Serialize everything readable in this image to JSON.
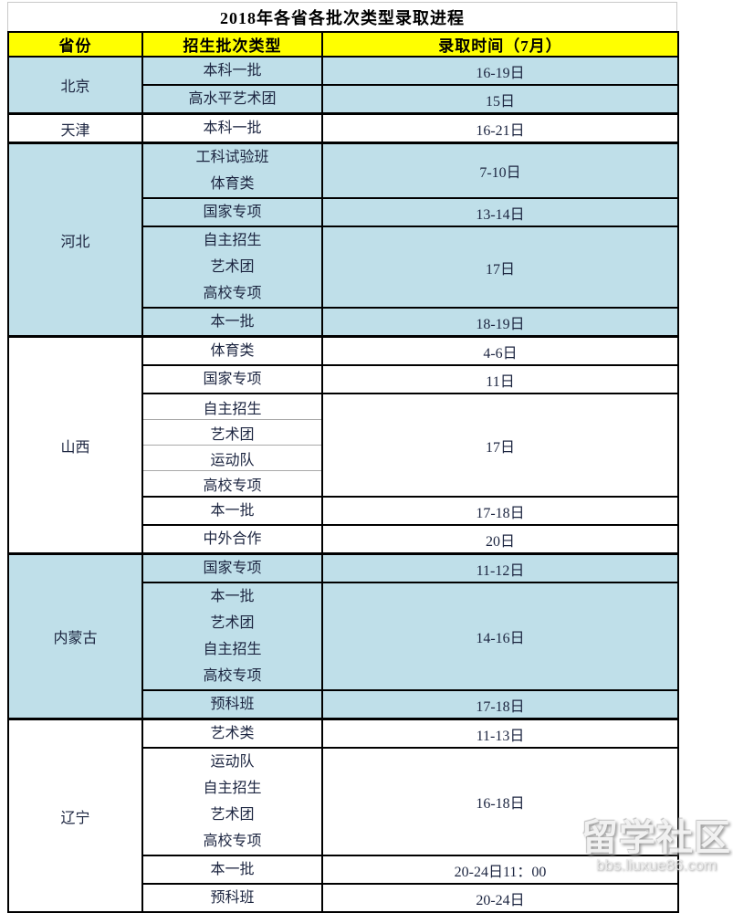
{
  "title": "2018年各省各批次类型录取进程",
  "header": {
    "province": "省份",
    "batch": "招生批次类型",
    "time": "录取时间（7月）"
  },
  "colors": {
    "header_bg": "#ffff00",
    "shaded_row_bg": "#bfdfe9",
    "border": "#000000",
    "thin_divider": "#a9a9a9",
    "text": "#1c2540"
  },
  "provinces": [
    {
      "name": "北京",
      "shaded": true,
      "rows": [
        {
          "batch": [
            "本科一批"
          ],
          "time": "16-19日"
        },
        {
          "batch": [
            "高水平艺术团"
          ],
          "time": "15日"
        }
      ]
    },
    {
      "name": "天津",
      "shaded": false,
      "rows": [
        {
          "batch": [
            "本科一批"
          ],
          "time": "16-21日"
        }
      ]
    },
    {
      "name": "河北",
      "shaded": true,
      "rows": [
        {
          "batch": [
            "工科试验班",
            "体育类"
          ],
          "time": "7-10日"
        },
        {
          "batch": [
            "国家专项"
          ],
          "time": "13-14日"
        },
        {
          "batch": [
            "自主招生",
            "艺术团",
            "高校专项"
          ],
          "time": "17日"
        },
        {
          "batch": [
            "本一批"
          ],
          "time": "18-19日"
        }
      ]
    },
    {
      "name": "山西",
      "shaded": false,
      "rows": [
        {
          "batch": [
            "体育类"
          ],
          "time": "4-6日"
        },
        {
          "batch": [
            "国家专项"
          ],
          "time": "11日"
        },
        {
          "batch": [
            "自主招生",
            "艺术团",
            "运动队",
            "高校专项"
          ],
          "time": "17日",
          "separators": true
        },
        {
          "batch": [
            "本一批"
          ],
          "time": "17-18日"
        },
        {
          "batch": [
            "中外合作"
          ],
          "time": "20日"
        }
      ]
    },
    {
      "name": "内蒙古",
      "shaded": true,
      "rows": [
        {
          "batch": [
            "国家专项"
          ],
          "time": "11-12日"
        },
        {
          "batch": [
            "本一批",
            "艺术团",
            "自主招生",
            "高校专项"
          ],
          "time": "14-16日"
        },
        {
          "batch": [
            "预科班"
          ],
          "time": "17-18日"
        }
      ]
    },
    {
      "name": "辽宁",
      "shaded": false,
      "rows": [
        {
          "batch": [
            "艺术类"
          ],
          "time": "11-13日"
        },
        {
          "batch": [
            "运动队",
            "自主招生",
            "艺术团",
            "高校专项"
          ],
          "time": "16-18日"
        },
        {
          "batch": [
            "本一批"
          ],
          "time": "20-24日11：00"
        },
        {
          "batch": [
            "预科班"
          ],
          "time": "20-24日"
        }
      ]
    }
  ],
  "watermark": {
    "logo": "留学社区",
    "url": "bbs.liuxue86.com"
  }
}
